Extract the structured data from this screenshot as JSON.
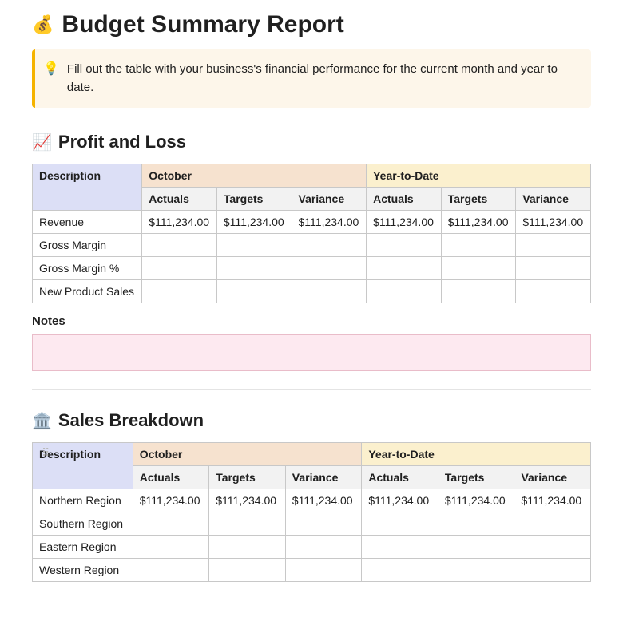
{
  "title": "Budget Summary Report",
  "title_icon": "💰",
  "callout": {
    "icon": "💡",
    "text": "Fill out the table with your business's financial performance for the current month and year to date.",
    "bg_color": "#fdf6ea",
    "border_color": "#f5b300"
  },
  "columns": {
    "description": "Description",
    "period1": "October",
    "period2": "Year-to-Date",
    "sub": {
      "actuals": "Actuals",
      "targets": "Targets",
      "variance": "Variance"
    }
  },
  "header_colors": {
    "description_bg": "#dcdff6",
    "period1_bg": "#f6e2cf",
    "period2_bg": "#fbf0ce",
    "sub_bg": "#f2f2f2"
  },
  "profit_loss": {
    "icon": "📈",
    "heading": "Profit and Loss",
    "rows": [
      {
        "desc": "Revenue",
        "p1_act": "$111,234.00",
        "p1_tgt": "$111,234.00",
        "p1_var": "$111,234.00",
        "p2_act": "$111,234.00",
        "p2_tgt": "$111,234.00",
        "p2_var": "$111,234.00"
      },
      {
        "desc": "Gross Margin",
        "p1_act": "",
        "p1_tgt": "",
        "p1_var": "",
        "p2_act": "",
        "p2_tgt": "",
        "p2_var": ""
      },
      {
        "desc": "Gross Margin %",
        "p1_act": "",
        "p1_tgt": "",
        "p1_var": "",
        "p2_act": "",
        "p2_tgt": "",
        "p2_var": ""
      },
      {
        "desc": "New Product Sales",
        "p1_act": "",
        "p1_tgt": "",
        "p1_var": "",
        "p2_act": "",
        "p2_tgt": "",
        "p2_var": ""
      }
    ],
    "notes_label": "Notes",
    "notes_value": "",
    "notes_bg": "#fde9f0",
    "notes_border": "#e9bcc9"
  },
  "sales_breakdown": {
    "icon": "🏛️",
    "heading": "Sales Breakdown",
    "rows": [
      {
        "desc": "Northern Region",
        "p1_act": "$111,234.00",
        "p1_tgt": "$111,234.00",
        "p1_var": "$111,234.00",
        "p2_act": "$111,234.00",
        "p2_tgt": "$111,234.00",
        "p2_var": "$111,234.00"
      },
      {
        "desc": "Southern Region",
        "p1_act": "",
        "p1_tgt": "",
        "p1_var": "",
        "p2_act": "",
        "p2_tgt": "",
        "p2_var": ""
      },
      {
        "desc": "Eastern Region",
        "p1_act": "",
        "p1_tgt": "",
        "p1_var": "",
        "p2_act": "",
        "p2_tgt": "",
        "p2_var": ""
      },
      {
        "desc": "Western Region",
        "p1_act": "",
        "p1_tgt": "",
        "p1_var": "",
        "p2_act": "",
        "p2_tgt": "",
        "p2_var": ""
      }
    ]
  }
}
